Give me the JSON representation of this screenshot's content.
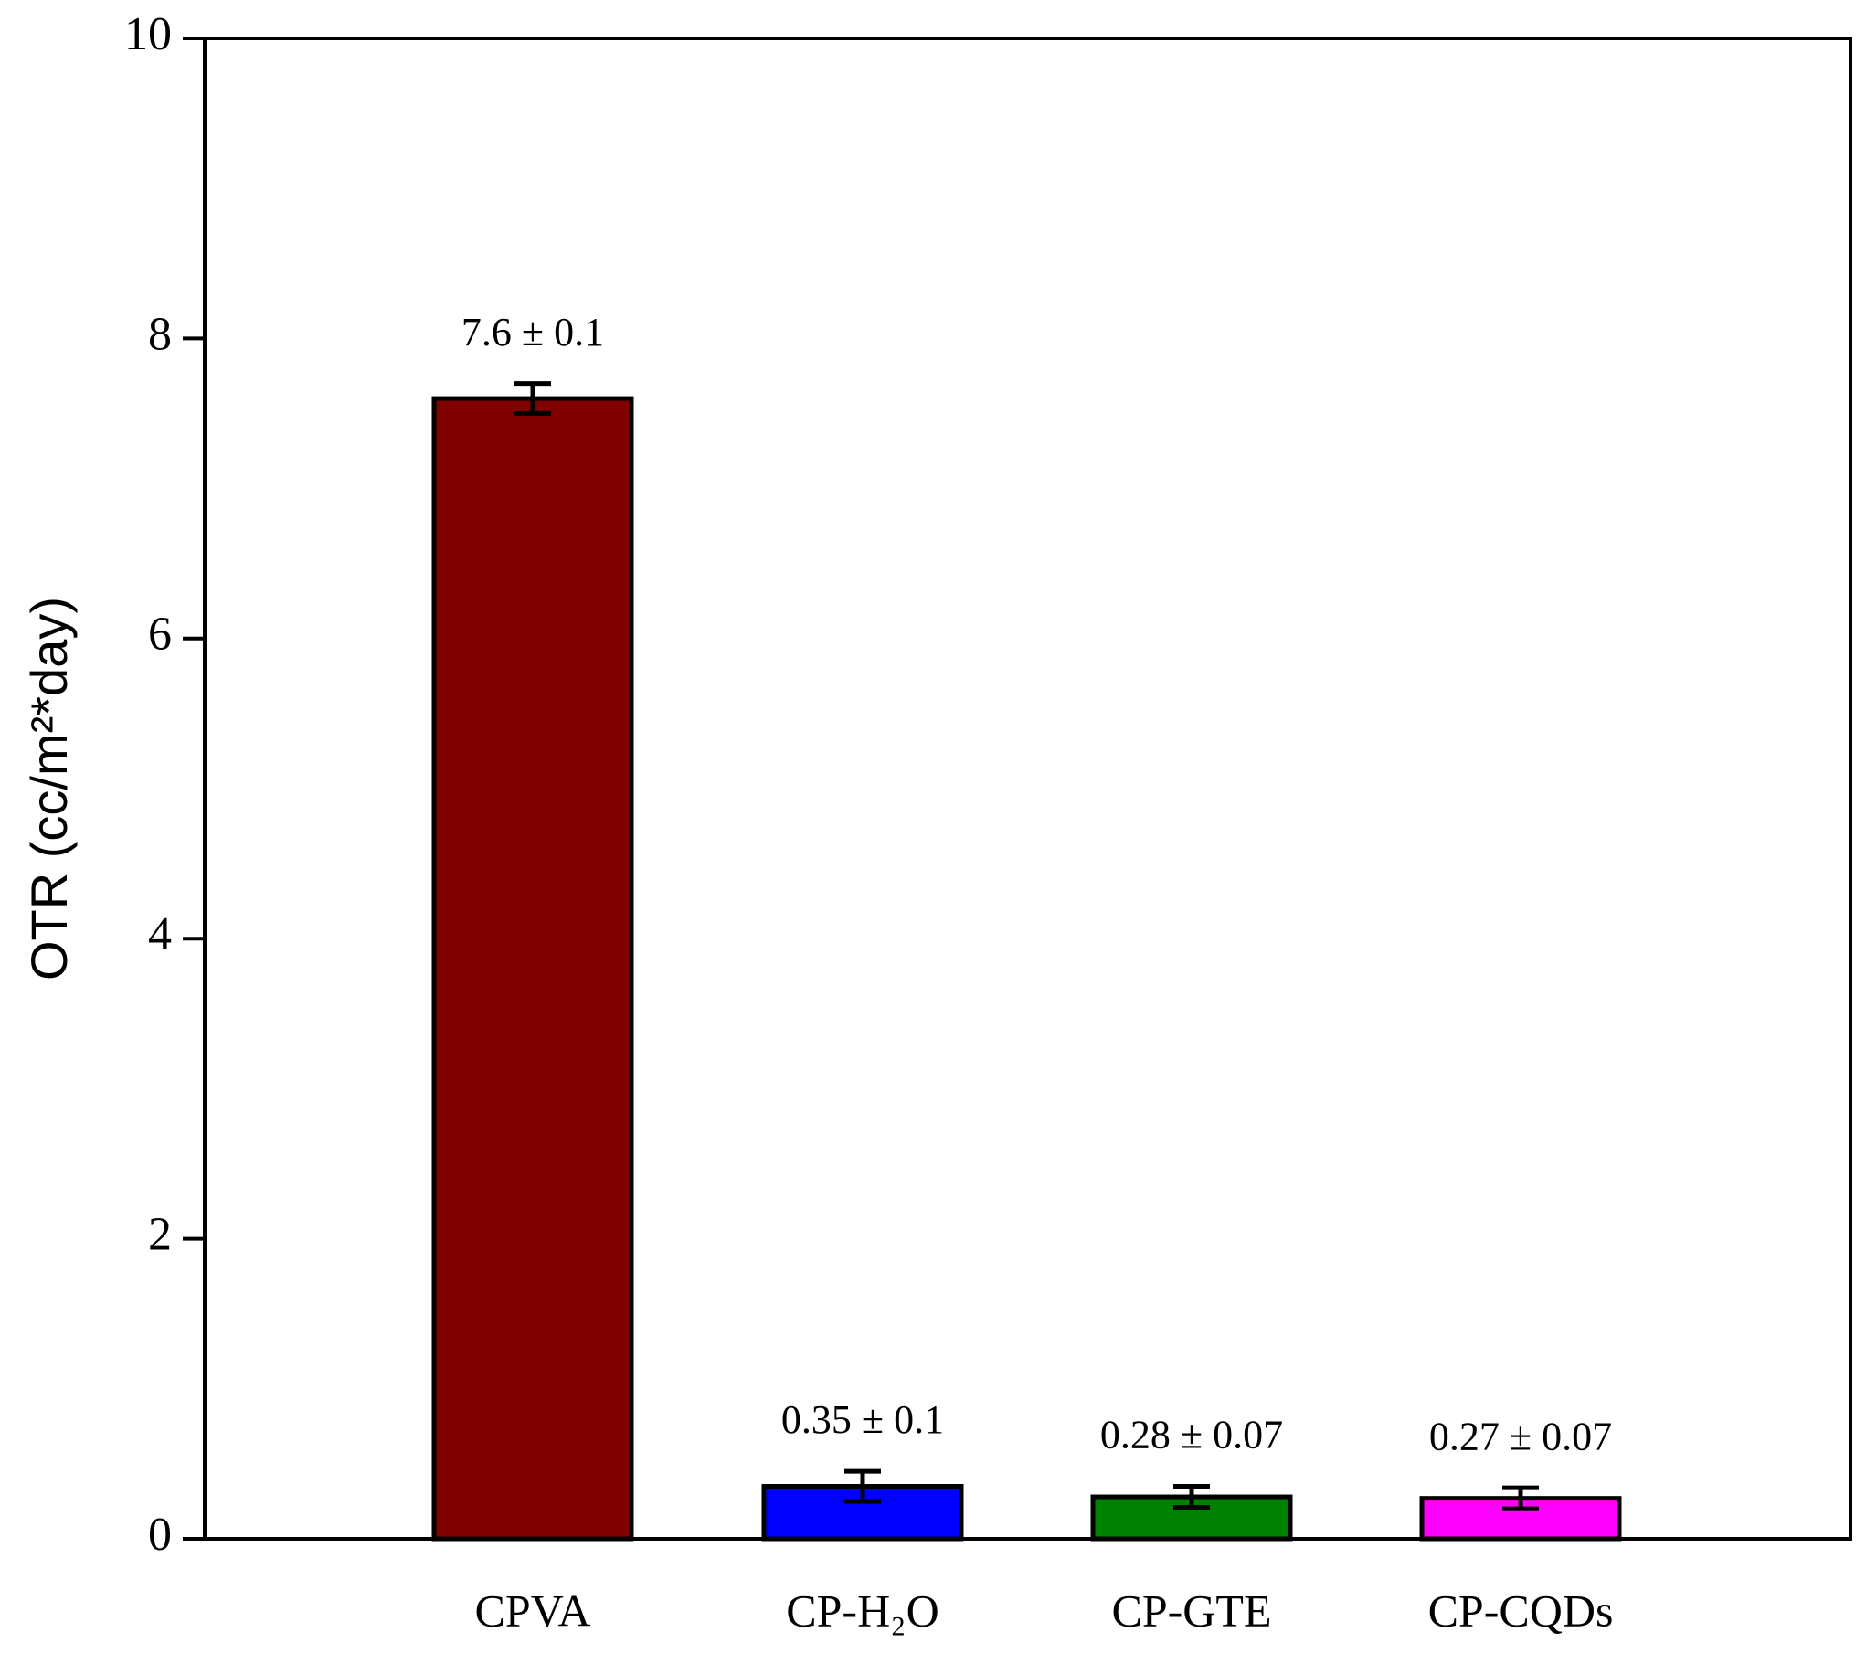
{
  "chart_data": {
    "type": "bar",
    "ylabel": "OTR (cc/m²*day)",
    "categories": [
      "CPVA",
      "CP-H₂O",
      "CP-GTE",
      "CP-CQDs"
    ],
    "values": [
      7.6,
      0.35,
      0.28,
      0.27
    ],
    "errors": [
      0.1,
      0.1,
      0.07,
      0.07
    ],
    "value_labels": [
      "7.6 ± 0.1",
      "0.35 ± 0.1",
      "0.28 ± 0.07",
      "0.27 ± 0.07"
    ],
    "colors": [
      "#800000",
      "#0000ff",
      "#008000",
      "#ff00ff"
    ],
    "ylim": [
      0,
      10
    ],
    "yticks": [
      0,
      2,
      4,
      6,
      8,
      10
    ],
    "grid": false
  }
}
